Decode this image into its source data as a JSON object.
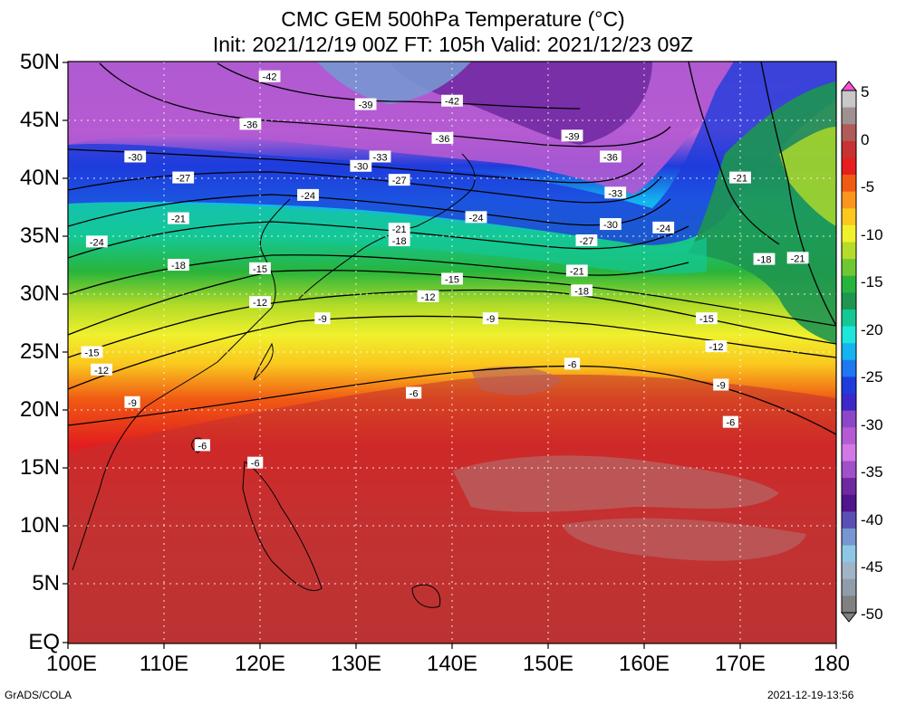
{
  "title": {
    "line1": "CMC GEM 500hPa Temperature (°C)",
    "line2": "Init: 2021/12/19 00Z  FT: 105h  Valid: 2021/12/23 09Z"
  },
  "lat_labels": [
    "50N",
    "45N",
    "40N",
    "35N",
    "30N",
    "25N",
    "20N",
    "15N",
    "10N",
    "5N",
    "EQ"
  ],
  "lon_labels": [
    "100E",
    "110E",
    "120E",
    "130E",
    "140E",
    "150E",
    "160E",
    "170E",
    "180"
  ],
  "colorbar": {
    "labels": [
      "5",
      "0",
      "-5",
      "-10",
      "-15",
      "-20",
      "-25",
      "-30",
      "-35",
      "-40",
      "-45",
      "-50"
    ],
    "colors": [
      "#c8c8c8",
      "#a09090",
      "#b05a5a",
      "#c83232",
      "#e61e1e",
      "#f05a14",
      "#fa961e",
      "#fac81e",
      "#f0f02d",
      "#b4dc28",
      "#6ec832",
      "#28b43c",
      "#1e9650",
      "#14c896",
      "#1ee6dc",
      "#14b4f0",
      "#1e78f0",
      "#1e3cdc",
      "#3c28c8",
      "#8c46c8",
      "#b45ad2",
      "#d278e6",
      "#a050c8",
      "#6e28a0",
      "#50148c",
      "#5a50b4",
      "#7896d2",
      "#8cc8e6",
      "#a0b4c8",
      "#909ca8",
      "#808080"
    ],
    "top_color": "#ff50d2",
    "bottom_color": "#808080"
  },
  "contour_labels": [
    {
      "lon": 107.0,
      "lat": 41.8,
      "text": "-30"
    },
    {
      "lon": 112.0,
      "lat": 40.0,
      "text": "-27"
    },
    {
      "lon": 111.5,
      "lat": 36.5,
      "text": "-21"
    },
    {
      "lon": 103.0,
      "lat": 34.5,
      "text": "-24"
    },
    {
      "lon": 111.5,
      "lat": 32.5,
      "text": "-18"
    },
    {
      "lon": 120.0,
      "lat": 32.2,
      "text": "-15"
    },
    {
      "lon": 120.0,
      "lat": 29.3,
      "text": "-12"
    },
    {
      "lon": 126.5,
      "lat": 27.9,
      "text": "-9"
    },
    {
      "lon": 102.5,
      "lat": 25.0,
      "text": "-15"
    },
    {
      "lon": 103.5,
      "lat": 23.5,
      "text": "-12"
    },
    {
      "lon": 106.7,
      "lat": 20.7,
      "text": "-9"
    },
    {
      "lon": 114.0,
      "lat": 17.0,
      "text": "-6"
    },
    {
      "lon": 119.5,
      "lat": 15.5,
      "text": "-6"
    },
    {
      "lon": 121.0,
      "lat": 48.7,
      "text": "-42"
    },
    {
      "lon": 131.0,
      "lat": 46.3,
      "text": "-39"
    },
    {
      "lon": 119.0,
      "lat": 44.6,
      "text": "-36"
    },
    {
      "lon": 130.5,
      "lat": 41.0,
      "text": "-30"
    },
    {
      "lon": 132.5,
      "lat": 41.8,
      "text": "-33"
    },
    {
      "lon": 134.5,
      "lat": 39.8,
      "text": "-27"
    },
    {
      "lon": 125.0,
      "lat": 38.5,
      "text": "-24"
    },
    {
      "lon": 134.5,
      "lat": 35.6,
      "text": "-21"
    },
    {
      "lon": 134.5,
      "lat": 34.6,
      "text": "-18"
    },
    {
      "lon": 140.0,
      "lat": 31.3,
      "text": "-15"
    },
    {
      "lon": 137.5,
      "lat": 29.8,
      "text": "-12"
    },
    {
      "lon": 144.0,
      "lat": 27.9,
      "text": "-9"
    },
    {
      "lon": 136.0,
      "lat": 21.5,
      "text": "-6"
    },
    {
      "lon": 140.0,
      "lat": 46.6,
      "text": "-42"
    },
    {
      "lon": 139.0,
      "lat": 43.4,
      "text": "-36"
    },
    {
      "lon": 152.5,
      "lat": 43.6,
      "text": "-39"
    },
    {
      "lon": 156.5,
      "lat": 41.8,
      "text": "-36"
    },
    {
      "lon": 157.0,
      "lat": 38.7,
      "text": "-33"
    },
    {
      "lon": 142.5,
      "lat": 36.6,
      "text": "-24"
    },
    {
      "lon": 156.5,
      "lat": 36.0,
      "text": "-30"
    },
    {
      "lon": 162.0,
      "lat": 35.7,
      "text": "-24"
    },
    {
      "lon": 154.0,
      "lat": 34.6,
      "text": "-27"
    },
    {
      "lon": 153.0,
      "lat": 32.0,
      "text": "-21"
    },
    {
      "lon": 153.5,
      "lat": 30.3,
      "text": "-18"
    },
    {
      "lon": 166.5,
      "lat": 27.9,
      "text": "-15"
    },
    {
      "lon": 167.5,
      "lat": 25.5,
      "text": "-12"
    },
    {
      "lon": 168.0,
      "lat": 22.2,
      "text": "-9"
    },
    {
      "lon": 169.0,
      "lat": 19.0,
      "text": "-6"
    },
    {
      "lon": 152.5,
      "lat": 24.0,
      "text": "-6"
    },
    {
      "lon": 170.0,
      "lat": 40.0,
      "text": "-21"
    },
    {
      "lon": 172.5,
      "lat": 33.0,
      "text": "-18"
    },
    {
      "lon": 176.0,
      "lat": 33.1,
      "text": "-21"
    }
  ],
  "footer": {
    "left": "GrADS/COLA",
    "right": "2021-12-19-13:56"
  }
}
